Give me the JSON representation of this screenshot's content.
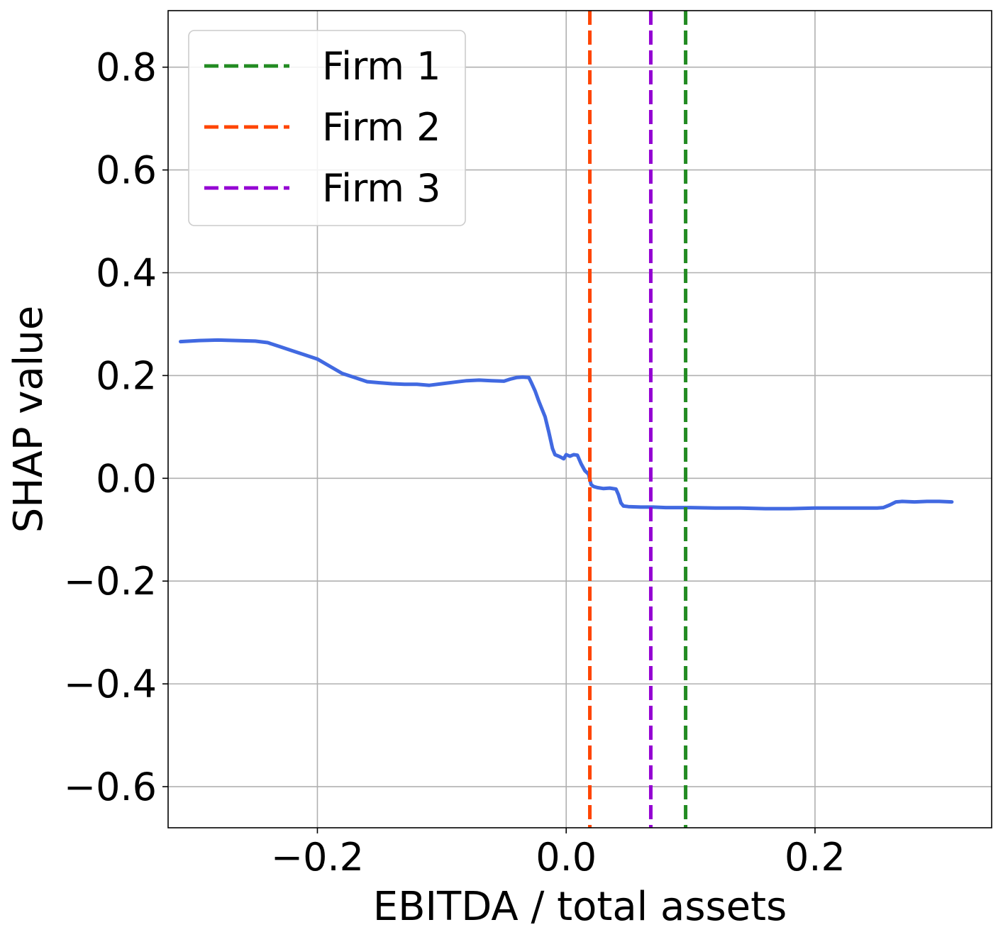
{
  "chart_data": {
    "type": "line",
    "xlabel": "EBITDA / total assets",
    "ylabel": "SHAP value",
    "xlim": [
      -0.32,
      0.342
    ],
    "ylim": [
      -0.68,
      0.91
    ],
    "x_ticks": [
      -0.2,
      0.0,
      0.2
    ],
    "x_tick_labels": [
      "−0.2",
      "0.0",
      "0.2"
    ],
    "y_ticks": [
      0.8,
      0.6,
      0.4,
      0.2,
      0.0,
      -0.2,
      -0.4,
      -0.6
    ],
    "y_tick_labels": [
      "0.8",
      "0.6",
      "0.4",
      "0.2",
      "0.0",
      "−0.2",
      "−0.4",
      "−0.6"
    ],
    "grid": true,
    "legend_position": "top-left",
    "series": [
      {
        "color": "#4169e1",
        "style": "solid",
        "x": [
          -0.31,
          -0.295,
          -0.28,
          -0.265,
          -0.25,
          -0.24,
          -0.23,
          -0.22,
          -0.21,
          -0.2,
          -0.19,
          -0.18,
          -0.17,
          -0.16,
          -0.15,
          -0.14,
          -0.13,
          -0.12,
          -0.11,
          -0.1,
          -0.09,
          -0.08,
          -0.07,
          -0.06,
          -0.05,
          -0.045,
          -0.04,
          -0.035,
          -0.03,
          -0.028,
          -0.025,
          -0.022,
          -0.02,
          -0.017,
          -0.014,
          -0.011,
          -0.009,
          -0.007,
          -0.005,
          -0.002,
          0.0,
          0.003,
          0.006,
          0.009,
          0.012,
          0.015,
          0.018,
          0.019,
          0.02,
          0.022,
          0.025,
          0.03,
          0.035,
          0.04,
          0.042,
          0.044,
          0.046,
          0.05,
          0.06,
          0.07,
          0.08,
          0.09,
          0.1,
          0.12,
          0.14,
          0.16,
          0.18,
          0.2,
          0.22,
          0.24,
          0.25,
          0.255,
          0.26,
          0.265,
          0.27,
          0.28,
          0.29,
          0.3,
          0.31
        ],
        "y": [
          0.266,
          0.268,
          0.269,
          0.268,
          0.267,
          0.264,
          0.256,
          0.248,
          0.24,
          0.232,
          0.218,
          0.204,
          0.196,
          0.188,
          0.186,
          0.184,
          0.183,
          0.183,
          0.181,
          0.184,
          0.187,
          0.19,
          0.191,
          0.19,
          0.189,
          0.193,
          0.196,
          0.197,
          0.196,
          0.186,
          0.17,
          0.15,
          0.138,
          0.12,
          0.09,
          0.058,
          0.046,
          0.044,
          0.042,
          0.038,
          0.046,
          0.043,
          0.046,
          0.045,
          0.028,
          0.015,
          0.008,
          -0.002,
          -0.012,
          -0.016,
          -0.018,
          -0.02,
          -0.019,
          -0.021,
          -0.032,
          -0.048,
          -0.054,
          -0.055,
          -0.056,
          -0.056,
          -0.057,
          -0.057,
          -0.057,
          -0.058,
          -0.058,
          -0.059,
          -0.059,
          -0.058,
          -0.058,
          -0.058,
          -0.058,
          -0.057,
          -0.052,
          -0.046,
          -0.045,
          -0.046,
          -0.045,
          -0.045,
          -0.046
        ]
      },
      {
        "name": "Firm 1",
        "color": "#228b22",
        "style": "dashed",
        "vline_x": 0.096
      },
      {
        "name": "Firm 2",
        "color": "#ff4500",
        "style": "dashed",
        "vline_x": 0.019
      },
      {
        "name": "Firm 3",
        "color": "#9400d3",
        "style": "dashed",
        "vline_x": 0.068
      }
    ]
  }
}
